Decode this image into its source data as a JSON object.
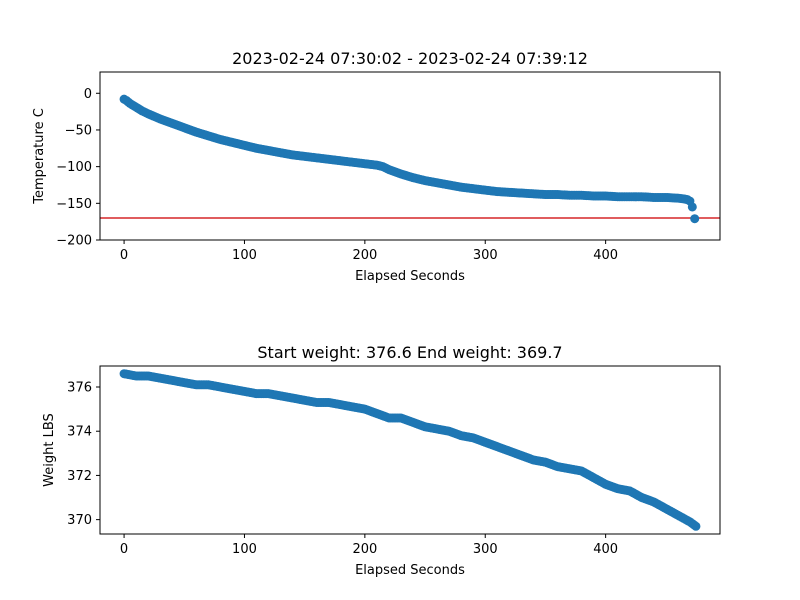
{
  "chart_data": [
    {
      "type": "scatter",
      "title": "2023-02-24 07:30:02 - 2023-02-24 07:39:12",
      "xlabel": "Elapsed Seconds",
      "ylabel": "Temperature C",
      "xlim": [
        -20,
        495
      ],
      "ylim": [
        -200,
        29
      ],
      "xticks": [
        0,
        100,
        200,
        300,
        400
      ],
      "yticks": [
        0,
        -50,
        -100,
        -150,
        -200
      ],
      "xtick_labels": [
        "0",
        "100",
        "200",
        "300",
        "400"
      ],
      "ytick_labels": [
        "0",
        "−50",
        "−100",
        "−150",
        "−200"
      ],
      "marker_color": "#1f77b4",
      "reference_line": {
        "y": -170,
        "color": "#d62728"
      },
      "grid": false,
      "series": [
        {
          "x": [
            0,
            2,
            5,
            10,
            15,
            20,
            30,
            40,
            50,
            60,
            70,
            80,
            90,
            100,
            110,
            120,
            130,
            140,
            150,
            160,
            170,
            180,
            190,
            200,
            210,
            215,
            220,
            230,
            240,
            250,
            260,
            270,
            280,
            290,
            300,
            310,
            320,
            330,
            340,
            350,
            360,
            370,
            380,
            390,
            400,
            410,
            420,
            430,
            440,
            450,
            460,
            465,
            468,
            470,
            472,
            474
          ],
          "y": [
            -8,
            -10,
            -14,
            -19,
            -24,
            -28,
            -35,
            -41,
            -47,
            -53,
            -58,
            -63,
            -67,
            -71,
            -75,
            -78,
            -81,
            -84,
            -86,
            -88,
            -90,
            -92,
            -94,
            -96,
            -98,
            -100,
            -104,
            -110,
            -115,
            -119,
            -122,
            -125,
            -128,
            -130,
            -132,
            -134,
            -135,
            -136,
            -137,
            -138,
            -138,
            -139,
            -139,
            -140,
            -140,
            -141,
            -141,
            -141,
            -142,
            -142,
            -143,
            -144,
            -145,
            -147,
            -155,
            -171
          ]
        }
      ]
    },
    {
      "type": "scatter",
      "title": "Start weight: 376.6 End weight: 369.7",
      "xlabel": "Elapsed Seconds",
      "ylabel": "Weight LBS",
      "xlim": [
        -20,
        495
      ],
      "ylim": [
        369.35,
        376.95
      ],
      "xticks": [
        0,
        100,
        200,
        300,
        400
      ],
      "yticks": [
        376,
        374,
        372,
        370
      ],
      "xtick_labels": [
        "0",
        "100",
        "200",
        "300",
        "400"
      ],
      "ytick_labels": [
        "376",
        "374",
        "372",
        "370"
      ],
      "marker_color": "#1f77b4",
      "grid": false,
      "series": [
        {
          "x": [
            0,
            10,
            20,
            30,
            40,
            50,
            60,
            70,
            80,
            90,
            100,
            110,
            120,
            130,
            140,
            150,
            160,
            170,
            180,
            190,
            200,
            210,
            220,
            230,
            240,
            250,
            260,
            270,
            280,
            290,
            300,
            310,
            320,
            330,
            340,
            350,
            360,
            370,
            380,
            390,
            400,
            410,
            420,
            430,
            440,
            450,
            460,
            470,
            475
          ],
          "y": [
            376.6,
            376.5,
            376.5,
            376.4,
            376.3,
            376.2,
            376.1,
            376.1,
            376.0,
            375.9,
            375.8,
            375.7,
            375.7,
            375.6,
            375.5,
            375.4,
            375.3,
            375.3,
            375.2,
            375.1,
            375.0,
            374.8,
            374.6,
            374.6,
            374.4,
            374.2,
            374.1,
            374.0,
            373.8,
            373.7,
            373.5,
            373.3,
            373.1,
            372.9,
            372.7,
            372.6,
            372.4,
            372.3,
            372.2,
            371.9,
            371.6,
            371.4,
            371.3,
            371.0,
            370.8,
            370.5,
            370.2,
            369.9,
            369.7
          ]
        }
      ]
    }
  ]
}
